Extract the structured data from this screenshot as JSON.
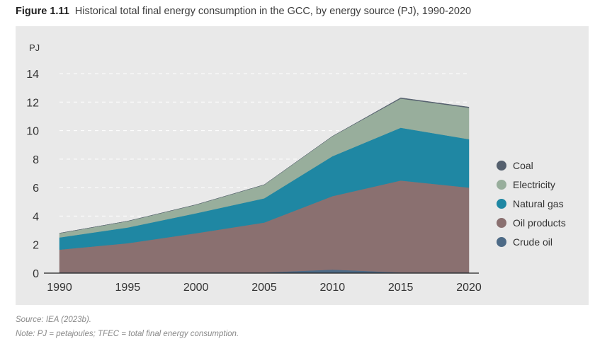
{
  "figure": {
    "number": "Figure 1.11",
    "title": "Historical total final energy consumption in the GCC, by energy source (PJ), 1990-2020"
  },
  "notes": {
    "source": "Source: IEA (2023b).",
    "abbreviations": "Note: PJ = petajoules; TFEC = total final energy consumption."
  },
  "chart_data": {
    "type": "area",
    "stacked": true,
    "title": "Historical total final energy consumption in the GCC, by energy source (PJ), 1990-2020",
    "ylabel": "PJ",
    "xlabel": "",
    "x": [
      1990,
      1995,
      2000,
      2005,
      2010,
      2015,
      2020
    ],
    "xticks": [
      "1990",
      "1995",
      "2000",
      "2005",
      "2010",
      "2015",
      "2020"
    ],
    "ylim": [
      0,
      14
    ],
    "yticks": [
      "0",
      "2",
      "4",
      "6",
      "8",
      "10",
      "12",
      "14"
    ],
    "gridlines": "horizontal dashed",
    "legend_position": "right",
    "series": [
      {
        "name": "Crude oil",
        "color": "#4d6a86",
        "values": [
          0.05,
          0.05,
          0.05,
          0.05,
          0.25,
          0.05,
          0.05
        ]
      },
      {
        "name": "Oil products",
        "color": "#8a7070",
        "values": [
          1.6,
          2.05,
          2.75,
          3.5,
          5.15,
          6.45,
          5.95
        ]
      },
      {
        "name": "Natural gas",
        "color": "#1f87a3",
        "values": [
          0.85,
          1.1,
          1.4,
          1.7,
          2.8,
          3.7,
          3.4
        ]
      },
      {
        "name": "Electricity",
        "color": "#98ae9c",
        "values": [
          0.3,
          0.45,
          0.6,
          0.95,
          1.4,
          2.05,
          2.2
        ]
      },
      {
        "name": "Coal",
        "color": "#55606e",
        "values": [
          0.0,
          0.0,
          0.0,
          0.0,
          0.0,
          0.05,
          0.05
        ]
      }
    ],
    "legend": [
      "Coal",
      "Electricity",
      "Natural gas",
      "Oil products",
      "Crude oil"
    ]
  }
}
